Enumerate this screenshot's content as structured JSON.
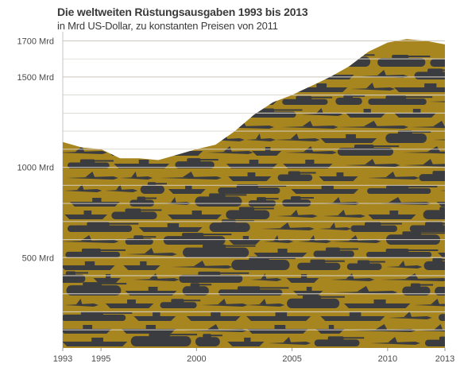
{
  "header": {
    "title": "Die weltweiten Rüstungsausgaben 1993 bis 2013",
    "subtitle": "in Mrd US-Dollar, zu konstanten Preisen von 2011"
  },
  "colors": {
    "area": "#a7851f",
    "silhouettes": "#3b3c40",
    "grid": "#c9c4bc",
    "stripe": "#d8d1c6"
  },
  "chart_data": {
    "type": "area",
    "title": "Die weltweiten Rüstungsausgaben 1993 bis 2013",
    "subtitle": "in Mrd US-Dollar, zu konstanten Preisen von 2011",
    "xlabel": "",
    "ylabel": "",
    "x": [
      1993,
      1994,
      1995,
      1996,
      1997,
      1998,
      1999,
      2000,
      2001,
      2002,
      2003,
      2004,
      2005,
      2006,
      2007,
      2008,
      2009,
      2010,
      2011,
      2012,
      2013
    ],
    "y": [
      1140,
      1110,
      1100,
      1050,
      1050,
      1040,
      1070,
      1100,
      1125,
      1200,
      1290,
      1360,
      1400,
      1450,
      1500,
      1560,
      1640,
      1690,
      1710,
      1700,
      1680
    ],
    "ylim": [
      0,
      1750
    ],
    "xlim": [
      1993,
      2013
    ],
    "x_ticks": [
      1993,
      1995,
      2000,
      2005,
      2010,
      2013
    ],
    "y_ticks": [
      {
        "value": 500,
        "label": "500 Mrd"
      },
      {
        "value": 1000,
        "label": "1000 Mrd"
      },
      {
        "value": 1500,
        "label": "1500 Mrd"
      },
      {
        "value": 1700,
        "label": "1700 Mrd"
      }
    ],
    "grid": true,
    "legend": "none"
  }
}
